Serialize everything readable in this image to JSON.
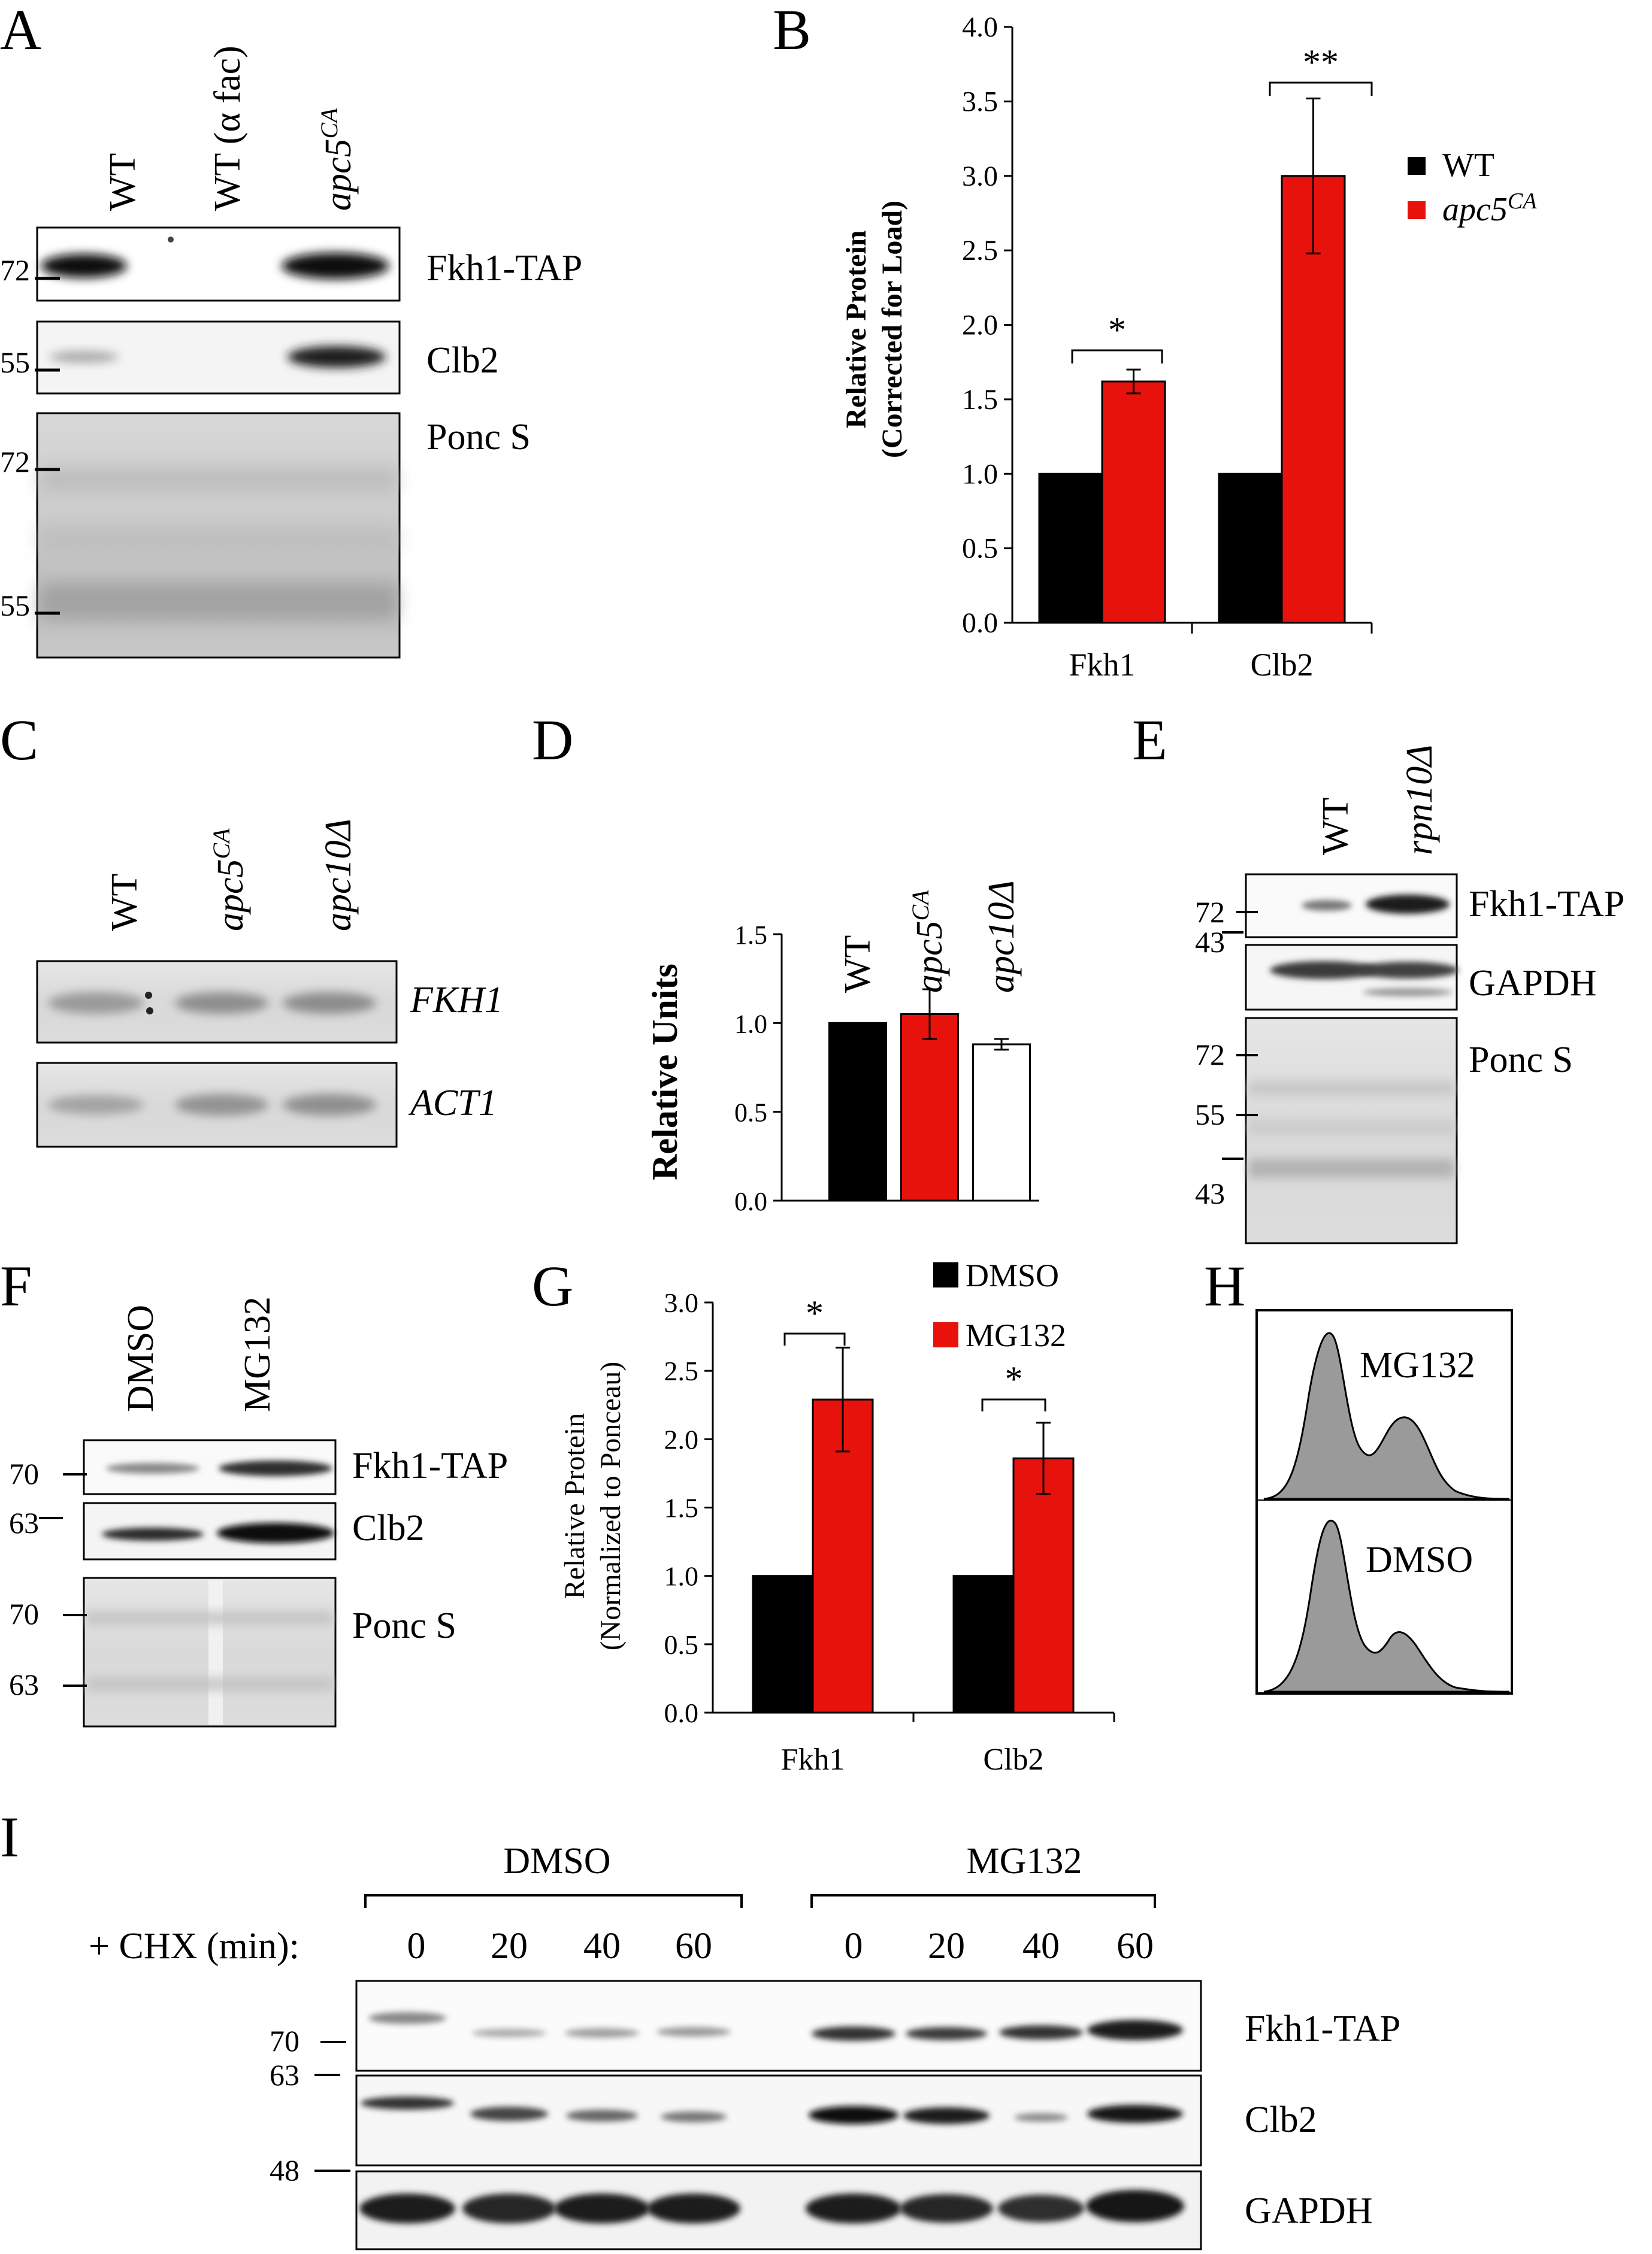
{
  "panels": {
    "A": {
      "label": "A",
      "lanes": [
        "WT",
        "WT (α fac)",
        "apc5"
      ],
      "lane3_sup": "CA",
      "rows": [
        "Fkh1-TAP",
        "Clb2",
        "Ponc S"
      ],
      "mw": [
        "72",
        "55",
        "72",
        "55"
      ]
    },
    "B": {
      "label": "B"
    },
    "C": {
      "label": "C",
      "lanes": [
        "WT",
        "apc5",
        "apc10Δ"
      ],
      "lane2_sup": "CA",
      "rows": [
        "FKH1",
        "ACT1"
      ]
    },
    "D": {
      "label": "D",
      "lanes": [
        "WT",
        "apc5",
        "apc10Δ"
      ],
      "lane2_sup": "CA"
    },
    "E": {
      "label": "E",
      "lanes": [
        "WT",
        "rpn10Δ"
      ],
      "rows": [
        "Fkh1-TAP",
        "GAPDH",
        "Ponc S"
      ],
      "mw": [
        "72",
        "43",
        "72",
        "55",
        "43"
      ]
    },
    "F": {
      "label": "F",
      "lanes": [
        "DMSO",
        "MG132"
      ],
      "rows": [
        "Fkh1-TAP",
        "Clb2",
        "Ponc S"
      ],
      "mw": [
        "70",
        "63",
        "70",
        "63"
      ]
    },
    "G": {
      "label": "G"
    },
    "H": {
      "label": "H",
      "profiles": [
        "MG132",
        "DMSO"
      ]
    },
    "I": {
      "label": "I",
      "groups": [
        "DMSO",
        "MG132"
      ],
      "chx_label": "+ CHX (min):",
      "timepoints": [
        "0",
        "20",
        "40",
        "60",
        "0",
        "20",
        "40",
        "60"
      ],
      "rows": [
        "Fkh1-TAP",
        "Clb2",
        "GAPDH"
      ],
      "mw": [
        "70",
        "63",
        "48"
      ]
    }
  },
  "chart_data": [
    {
      "panel": "B",
      "type": "bar",
      "categories": [
        "Fkh1",
        "Clb2"
      ],
      "series": [
        {
          "name": "WT",
          "values": [
            1.0,
            1.0
          ],
          "color": "#000000"
        },
        {
          "name": "apc5",
          "name_sup": "CA",
          "values": [
            1.62,
            3.0
          ],
          "errors": [
            0.08,
            0.52
          ],
          "color": "#e8120c"
        }
      ],
      "ylabel": "Relative Protein",
      "ylabel2": "(Corrected for Load)",
      "ylim": [
        0,
        4.0
      ],
      "yticks": [
        "0.0",
        "0.5",
        "1.0",
        "1.5",
        "2.0",
        "2.5",
        "3.0",
        "3.5",
        "4.0"
      ],
      "significance": [
        "*",
        "**"
      ],
      "legend": "top-right"
    },
    {
      "panel": "D",
      "type": "bar",
      "categories": [
        "WT",
        "apc5CA",
        "apc10Δ"
      ],
      "values": [
        1.0,
        1.05,
        0.88
      ],
      "errors": [
        0,
        0.14,
        0.03
      ],
      "colors": [
        "#000000",
        "#e8120c",
        "#ffffff"
      ],
      "ylabel": "Relative Units",
      "ylim": [
        0,
        1.5
      ],
      "yticks": [
        "0.0",
        "0.5",
        "1.0",
        "1.5"
      ]
    },
    {
      "panel": "G",
      "type": "bar",
      "categories": [
        "Fkh1",
        "Clb2"
      ],
      "series": [
        {
          "name": "DMSO",
          "values": [
            1.0,
            1.0
          ],
          "color": "#000000"
        },
        {
          "name": "MG132",
          "values": [
            2.29,
            1.86
          ],
          "errors": [
            0.38,
            0.26
          ],
          "color": "#e8120c"
        }
      ],
      "ylabel": "Relative Protein",
      "ylabel2": "(Normalized to Ponceau)",
      "ylim": [
        0,
        3.0
      ],
      "yticks": [
        "0.0",
        "0.5",
        "1.0",
        "1.5",
        "2.0",
        "2.5",
        "3.0"
      ],
      "significance": [
        "*",
        "*"
      ],
      "legend": "top"
    }
  ]
}
